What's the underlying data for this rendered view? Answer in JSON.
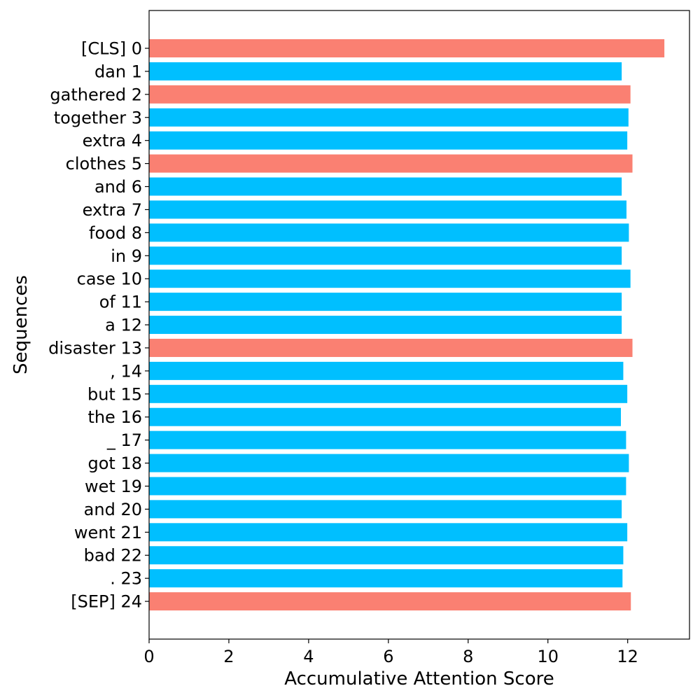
{
  "chart_data": {
    "type": "bar",
    "orientation": "horizontal",
    "categories": [
      "[CLS] 0",
      "dan 1",
      "gathered 2",
      "together 3",
      "extra 4",
      "clothes 5",
      "and 6",
      "extra 7",
      "food 8",
      "in 9",
      "case 10",
      "of 11",
      "a 12",
      "disaster 13",
      ", 14",
      "but 15",
      "the 16",
      "_ 17",
      "got 18",
      "wet 19",
      "and 20",
      "went 21",
      "bad 22",
      ". 23",
      "[SEP] 24"
    ],
    "values": [
      12.92,
      11.85,
      12.07,
      12.02,
      11.99,
      12.12,
      11.85,
      11.97,
      12.03,
      11.85,
      12.07,
      11.85,
      11.85,
      12.12,
      11.89,
      11.99,
      11.83,
      11.96,
      12.03,
      11.96,
      11.85,
      11.99,
      11.89,
      11.87,
      12.08
    ],
    "highlighted": [
      true,
      false,
      true,
      false,
      false,
      true,
      false,
      false,
      false,
      false,
      false,
      false,
      false,
      true,
      false,
      false,
      false,
      false,
      false,
      false,
      false,
      false,
      false,
      false,
      true
    ],
    "colors": {
      "highlight": "#fa8072",
      "normal": "#00bfff"
    },
    "xlabel": "Accumulative Attention Score",
    "ylabel": "Sequences",
    "xlim": [
      0,
      13.55
    ],
    "xticks": [
      0,
      2,
      4,
      6,
      8,
      10,
      12
    ],
    "grid": false
  }
}
